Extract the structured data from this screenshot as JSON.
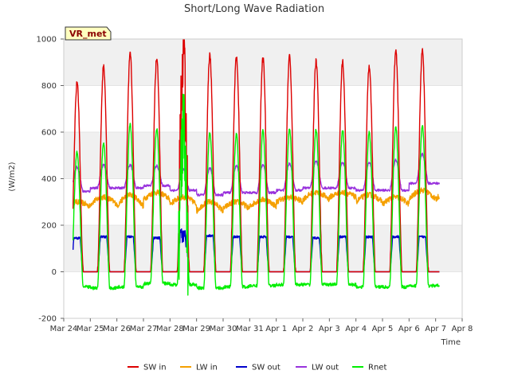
{
  "chart_data": {
    "type": "line",
    "title": "Short/Long Wave Radiation",
    "xlabel": "Time",
    "ylabel": "(W/m2)",
    "station_label": "VR_met",
    "ylim": [
      -200,
      1000
    ],
    "yticks": [
      -200,
      0,
      200,
      400,
      600,
      800,
      1000
    ],
    "xlim": [
      0,
      15
    ],
    "xticks": [
      {
        "x": 0,
        "label": "Mar 24"
      },
      {
        "x": 1,
        "label": "Mar 25"
      },
      {
        "x": 2,
        "label": "Mar 26"
      },
      {
        "x": 3,
        "label": "Mar 27"
      },
      {
        "x": 4,
        "label": "Mar 28"
      },
      {
        "x": 5,
        "label": "Mar 29"
      },
      {
        "x": 6,
        "label": "Mar 30"
      },
      {
        "x": 7,
        "label": "Mar 31"
      },
      {
        "x": 8,
        "label": "Apr 1"
      },
      {
        "x": 9,
        "label": "Apr 2"
      },
      {
        "x": 10,
        "label": "Apr 3"
      },
      {
        "x": 11,
        "label": "Apr 4"
      },
      {
        "x": 12,
        "label": "Apr 5"
      },
      {
        "x": 13,
        "label": "Apr 6"
      },
      {
        "x": 14,
        "label": "Apr 7"
      },
      {
        "x": 15,
        "label": "Apr 8"
      }
    ],
    "x_start": 0.35,
    "x_end": 14.15,
    "days": [
      0,
      1,
      2,
      3,
      4,
      5,
      6,
      7,
      8,
      9,
      10,
      11,
      12,
      13,
      14
    ],
    "grid": "horizontal bands",
    "legend_position": "bottom",
    "series": [
      {
        "name": "SW in",
        "color": "#dd0000",
        "daily_peak": [
          810,
          880,
          935,
          915,
          920,
          930,
          920,
          915,
          920,
          905,
          900,
          890,
          950,
          950
        ]
      },
      {
        "name": "LW in",
        "color": "#f5a000",
        "night_level": [
          280,
          290,
          280,
          310,
          290,
          260,
          270,
          280,
          300,
          310,
          320,
          300,
          290,
          310
        ],
        "day_level": [
          300,
          320,
          330,
          340,
          320,
          300,
          300,
          310,
          320,
          340,
          340,
          330,
          320,
          350
        ]
      },
      {
        "name": "SW out",
        "color": "#0000cc",
        "daily_peak": [
          145,
          150,
          150,
          145,
          150,
          155,
          150,
          150,
          150,
          145,
          150,
          150,
          150,
          150
        ]
      },
      {
        "name": "LW out",
        "color": "#9933dd",
        "night_level": [
          345,
          360,
          360,
          370,
          350,
          330,
          340,
          340,
          350,
          360,
          360,
          350,
          350,
          380
        ],
        "daily_peak": [
          450,
          460,
          460,
          455,
          440,
          445,
          455,
          460,
          465,
          475,
          470,
          470,
          480,
          505
        ]
      },
      {
        "name": "Rnet",
        "color": "#00ee00",
        "night_level": [
          -65,
          -70,
          -65,
          -50,
          -55,
          -70,
          -65,
          -60,
          -55,
          -55,
          -55,
          -65,
          -65,
          -60
        ],
        "daily_peak": [
          515,
          555,
          635,
          615,
          600,
          600,
          590,
          605,
          615,
          610,
          605,
          600,
          620,
          625
        ]
      }
    ]
  }
}
